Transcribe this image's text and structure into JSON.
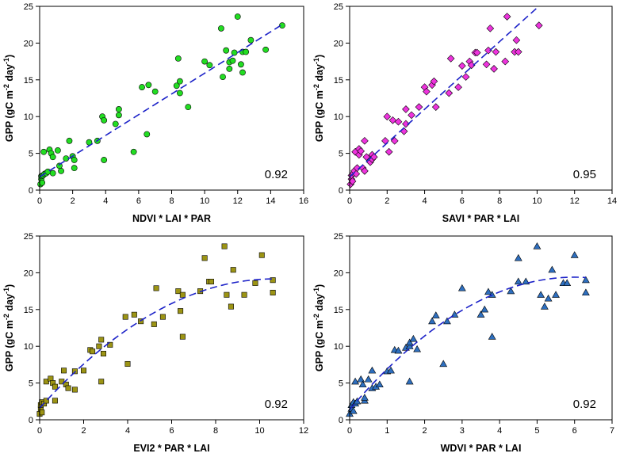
{
  "chart_data": [
    {
      "type": "scatter",
      "marker": "circle",
      "color": "#22dd22",
      "xlabel": "NDVI * LAI * PAR",
      "ylabel": "GPP (gC m-2 day-1)",
      "xlim": [
        0,
        16
      ],
      "ylim": [
        0,
        25
      ],
      "xticks": [
        0,
        2,
        4,
        6,
        8,
        10,
        12,
        14,
        16
      ],
      "yticks": [
        0,
        5,
        10,
        15,
        20,
        25
      ],
      "annotation": "0.92",
      "fit": {
        "kind": "linear",
        "intercept": 1.8,
        "slope": 1.41,
        "xrange": [
          0,
          14.7
        ]
      },
      "points": [
        [
          0.05,
          0.8
        ],
        [
          0.1,
          1.5
        ],
        [
          0.1,
          1.9
        ],
        [
          0.15,
          1.0
        ],
        [
          0.2,
          2.0
        ],
        [
          0.3,
          2.2
        ],
        [
          0.4,
          2.3
        ],
        [
          0.5,
          2.5
        ],
        [
          0.25,
          5.2
        ],
        [
          0.6,
          5.5
        ],
        [
          0.7,
          5.0
        ],
        [
          0.8,
          4.5
        ],
        [
          0.8,
          2.3
        ],
        [
          1.1,
          5.4
        ],
        [
          1.2,
          3.3
        ],
        [
          1.3,
          2.6
        ],
        [
          1.6,
          4.3
        ],
        [
          1.8,
          6.7
        ],
        [
          2.0,
          4.6
        ],
        [
          2.1,
          4.1
        ],
        [
          2.1,
          3.0
        ],
        [
          3.0,
          6.5
        ],
        [
          3.5,
          6.7
        ],
        [
          3.8,
          10.0
        ],
        [
          3.9,
          9.5
        ],
        [
          3.9,
          4.1
        ],
        [
          4.6,
          9.0
        ],
        [
          4.8,
          10.2
        ],
        [
          4.8,
          11.0
        ],
        [
          5.7,
          5.2
        ],
        [
          6.2,
          14.0
        ],
        [
          6.5,
          7.6
        ],
        [
          6.6,
          14.3
        ],
        [
          7.0,
          13.4
        ],
        [
          8.3,
          14.2
        ],
        [
          8.4,
          17.9
        ],
        [
          8.5,
          14.8
        ],
        [
          8.5,
          13.2
        ],
        [
          9.0,
          11.3
        ],
        [
          10.0,
          17.5
        ],
        [
          10.3,
          17.0
        ],
        [
          11.0,
          22.0
        ],
        [
          11.1,
          15.4
        ],
        [
          11.3,
          19.0
        ],
        [
          11.5,
          17.4
        ],
        [
          11.5,
          16.5
        ],
        [
          11.7,
          17.6
        ],
        [
          11.8,
          18.7
        ],
        [
          12.0,
          23.6
        ],
        [
          12.2,
          17.1
        ],
        [
          12.3,
          18.8
        ],
        [
          12.3,
          16.0
        ],
        [
          12.5,
          18.8
        ],
        [
          12.8,
          20.4
        ],
        [
          13.7,
          19.1
        ],
        [
          14.7,
          22.4
        ]
      ]
    },
    {
      "type": "scatter",
      "marker": "diamond",
      "color": "#ee33dd",
      "xlabel": "SAVI * PAR * LAI",
      "ylabel": "GPP (gC m-2 day-1)",
      "xlim": [
        0,
        14
      ],
      "ylim": [
        0,
        25
      ],
      "xticks": [
        0,
        2,
        4,
        6,
        8,
        10,
        12,
        14
      ],
      "yticks": [
        0,
        5,
        10,
        15,
        20,
        25
      ],
      "annotation": "0.95",
      "fit": {
        "kind": "linear",
        "intercept": 1.8,
        "slope": 2.3,
        "xrange": [
          0,
          10.1
        ]
      },
      "points": [
        [
          0.05,
          0.8
        ],
        [
          0.1,
          1.5
        ],
        [
          0.1,
          2.0
        ],
        [
          0.15,
          1.2
        ],
        [
          0.2,
          2.3
        ],
        [
          0.25,
          2.6
        ],
        [
          0.3,
          5.2
        ],
        [
          0.35,
          2.2
        ],
        [
          0.4,
          3.0
        ],
        [
          0.5,
          5.6
        ],
        [
          0.5,
          4.8
        ],
        [
          0.6,
          5.3
        ],
        [
          0.7,
          3.0
        ],
        [
          0.8,
          2.6
        ],
        [
          0.8,
          6.7
        ],
        [
          0.9,
          4.5
        ],
        [
          1.1,
          3.8
        ],
        [
          1.2,
          4.8
        ],
        [
          1.2,
          4.2
        ],
        [
          1.3,
          4.5
        ],
        [
          1.9,
          6.7
        ],
        [
          2.0,
          10.0
        ],
        [
          2.1,
          5.2
        ],
        [
          2.4,
          6.7
        ],
        [
          2.3,
          9.5
        ],
        [
          2.6,
          9.3
        ],
        [
          2.9,
          8.0
        ],
        [
          3.0,
          9.0
        ],
        [
          3.0,
          11.0
        ],
        [
          3.3,
          10.2
        ],
        [
          3.7,
          11.3
        ],
        [
          4.0,
          14.0
        ],
        [
          4.1,
          13.4
        ],
        [
          4.4,
          14.3
        ],
        [
          4.5,
          14.8
        ],
        [
          4.6,
          11.3
        ],
        [
          5.3,
          13.2
        ],
        [
          5.4,
          17.9
        ],
        [
          5.8,
          14.0
        ],
        [
          6.0,
          16.9
        ],
        [
          6.2,
          15.4
        ],
        [
          6.4,
          17.5
        ],
        [
          6.5,
          17.0
        ],
        [
          6.7,
          18.7
        ],
        [
          6.8,
          18.7
        ],
        [
          7.3,
          17.1
        ],
        [
          7.4,
          19.0
        ],
        [
          7.5,
          22.0
        ],
        [
          7.7,
          16.5
        ],
        [
          7.8,
          18.8
        ],
        [
          8.3,
          17.5
        ],
        [
          8.4,
          23.6
        ],
        [
          8.8,
          18.8
        ],
        [
          8.9,
          20.4
        ],
        [
          9.0,
          18.8
        ],
        [
          10.1,
          22.4
        ]
      ]
    },
    {
      "type": "scatter",
      "marker": "square",
      "color": "#9c9414",
      "xlabel": "EVI2 * PAR * LAI",
      "ylabel": "GPP (gC m-2 day-1)",
      "xlim": [
        0,
        12
      ],
      "ylim": [
        0,
        25
      ],
      "xticks": [
        0,
        2,
        4,
        6,
        8,
        10,
        12
      ],
      "yticks": [
        0,
        5,
        10,
        15,
        20,
        25
      ],
      "annotation": "0.92",
      "fit": {
        "kind": "quadratic",
        "c0": 1.6,
        "c1": 3.3,
        "c2": -0.155,
        "xrange": [
          0,
          10.6
        ]
      },
      "points": [
        [
          0.0,
          0.8
        ],
        [
          0.05,
          1.5
        ],
        [
          0.05,
          2.0
        ],
        [
          0.1,
          1.0
        ],
        [
          0.1,
          2.4
        ],
        [
          0.2,
          2.2
        ],
        [
          0.3,
          2.6
        ],
        [
          0.3,
          5.2
        ],
        [
          0.5,
          5.6
        ],
        [
          0.6,
          5.0
        ],
        [
          0.7,
          4.5
        ],
        [
          0.7,
          2.6
        ],
        [
          1.0,
          5.2
        ],
        [
          1.1,
          6.7
        ],
        [
          1.2,
          4.8
        ],
        [
          1.3,
          4.3
        ],
        [
          1.6,
          6.6
        ],
        [
          1.6,
          4.1
        ],
        [
          2.0,
          6.7
        ],
        [
          2.3,
          9.5
        ],
        [
          2.4,
          9.3
        ],
        [
          2.7,
          10.0
        ],
        [
          2.8,
          10.9
        ],
        [
          2.8,
          5.2
        ],
        [
          2.9,
          9.0
        ],
        [
          3.2,
          10.2
        ],
        [
          3.9,
          14.0
        ],
        [
          4.0,
          7.6
        ],
        [
          4.3,
          14.3
        ],
        [
          4.6,
          13.4
        ],
        [
          5.2,
          13.0
        ],
        [
          5.3,
          17.9
        ],
        [
          5.6,
          14.0
        ],
        [
          6.3,
          17.5
        ],
        [
          6.4,
          14.8
        ],
        [
          6.5,
          11.3
        ],
        [
          6.5,
          17.0
        ],
        [
          7.3,
          17.5
        ],
        [
          7.5,
          22.0
        ],
        [
          7.7,
          18.8
        ],
        [
          7.8,
          18.8
        ],
        [
          8.4,
          23.6
        ],
        [
          8.5,
          17.0
        ],
        [
          8.7,
          15.4
        ],
        [
          8.8,
          20.4
        ],
        [
          9.3,
          17.0
        ],
        [
          9.8,
          18.6
        ],
        [
          10.1,
          22.4
        ],
        [
          10.6,
          19.0
        ],
        [
          10.6,
          17.3
        ]
      ]
    },
    {
      "type": "scatter",
      "marker": "triangle",
      "color": "#2e6fbf",
      "xlabel": "WDVI * PAR * LAI",
      "ylabel": "GPP (gC m-2 day-1)",
      "xlim": [
        0,
        7
      ],
      "ylim": [
        0,
        25
      ],
      "xticks": [
        0,
        1,
        2,
        3,
        4,
        5,
        6,
        7
      ],
      "yticks": [
        0,
        5,
        10,
        15,
        20,
        25
      ],
      "annotation": "0.92",
      "fit": {
        "kind": "quadratic",
        "c0": 1.4,
        "c1": 6.0,
        "c2": -0.5,
        "xrange": [
          0,
          6.3
        ]
      },
      "points": [
        [
          0.0,
          0.8
        ],
        [
          0.05,
          1.5
        ],
        [
          0.05,
          2.0
        ],
        [
          0.1,
          1.2
        ],
        [
          0.1,
          2.4
        ],
        [
          0.15,
          2.2
        ],
        [
          0.2,
          2.5
        ],
        [
          0.15,
          5.2
        ],
        [
          0.3,
          5.5
        ],
        [
          0.35,
          4.8
        ],
        [
          0.4,
          2.6
        ],
        [
          0.4,
          3.0
        ],
        [
          0.5,
          5.5
        ],
        [
          0.6,
          4.3
        ],
        [
          0.6,
          6.7
        ],
        [
          0.7,
          4.5
        ],
        [
          0.8,
          4.8
        ],
        [
          1.0,
          6.6
        ],
        [
          1.1,
          6.7
        ],
        [
          1.2,
          9.5
        ],
        [
          1.3,
          9.4
        ],
        [
          1.5,
          9.8
        ],
        [
          1.6,
          10.0
        ],
        [
          1.6,
          5.2
        ],
        [
          1.6,
          10.5
        ],
        [
          1.7,
          11.0
        ],
        [
          1.8,
          9.6
        ],
        [
          2.2,
          13.4
        ],
        [
          2.3,
          14.2
        ],
        [
          2.5,
          7.6
        ],
        [
          2.6,
          13.4
        ],
        [
          2.8,
          14.3
        ],
        [
          3.0,
          17.9
        ],
        [
          3.5,
          14.3
        ],
        [
          3.6,
          15.0
        ],
        [
          3.7,
          17.4
        ],
        [
          3.8,
          17.0
        ],
        [
          3.8,
          11.3
        ],
        [
          4.3,
          17.5
        ],
        [
          4.5,
          22.0
        ],
        [
          4.5,
          18.8
        ],
        [
          4.7,
          18.8
        ],
        [
          5.0,
          23.6
        ],
        [
          5.1,
          17.0
        ],
        [
          5.2,
          15.4
        ],
        [
          5.3,
          16.5
        ],
        [
          5.4,
          20.4
        ],
        [
          5.5,
          17.0
        ],
        [
          5.7,
          18.6
        ],
        [
          5.8,
          18.6
        ],
        [
          6.0,
          22.4
        ],
        [
          6.3,
          19.0
        ],
        [
          6.3,
          17.3
        ]
      ]
    }
  ]
}
